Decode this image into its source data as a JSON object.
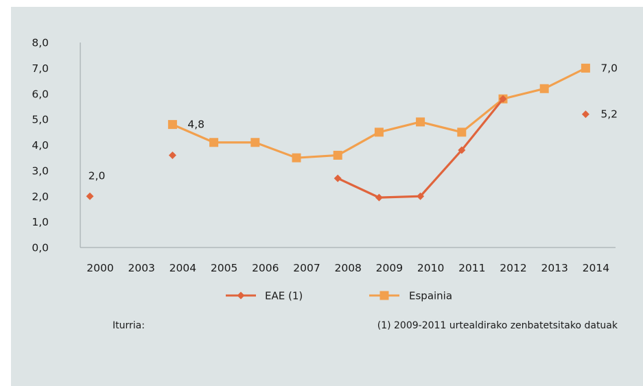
{
  "chart_data": {
    "type": "line",
    "categories": [
      "2000",
      "2003",
      "2004",
      "2005",
      "2006",
      "2007",
      "2008",
      "2009",
      "2010",
      "2011",
      "2012",
      "2013",
      "2014"
    ],
    "ylim": [
      0,
      8
    ],
    "yticks": [
      "0,0",
      "1,0",
      "2,0",
      "3,0",
      "4,0",
      "5,0",
      "6,0",
      "7,0",
      "8,0"
    ],
    "series": [
      {
        "name": "EAE (1)",
        "color": "#e0643c",
        "marker": "diamond",
        "values": [
          2.0,
          null,
          3.6,
          null,
          null,
          null,
          2.7,
          1.95,
          2.0,
          3.8,
          5.8,
          null,
          5.2
        ],
        "line_segments": [
          [
            6,
            7,
            8,
            9,
            10
          ]
        ]
      },
      {
        "name": "Espainia",
        "color": "#f2a04e",
        "marker": "square",
        "values": [
          null,
          null,
          4.8,
          4.1,
          4.1,
          3.5,
          3.6,
          4.5,
          4.9,
          4.5,
          5.8,
          6.2,
          7.0
        ],
        "line_segments": [
          [
            2,
            3,
            4,
            5,
            6,
            7,
            8,
            9,
            10,
            11,
            12
          ]
        ]
      }
    ],
    "data_labels": [
      {
        "series": 0,
        "index": 0,
        "text": "2,0",
        "pos": "above"
      },
      {
        "series": 1,
        "index": 2,
        "text": "4,8",
        "pos": "right"
      },
      {
        "series": 1,
        "index": 12,
        "text": "7,0",
        "pos": "right"
      },
      {
        "series": 0,
        "index": 12,
        "text": "5,2",
        "pos": "right"
      }
    ],
    "grid": false,
    "legend": "bottom"
  },
  "footer": {
    "source_label": "Iturria:",
    "note": "(1) 2009-2011 urtealdirako zenbatetsitako datuak"
  }
}
